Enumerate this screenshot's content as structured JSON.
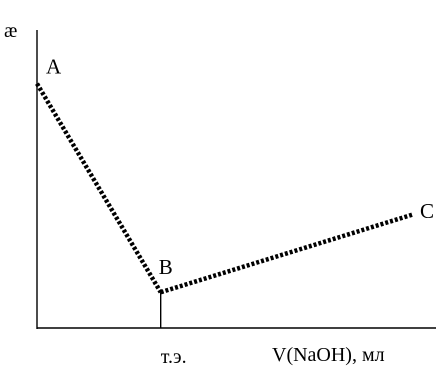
{
  "chart_data": {
    "type": "line",
    "title": "",
    "ylabel": "æ",
    "xlabel": "V(NaOH), мл",
    "xlim": [
      0,
      100
    ],
    "ylim": [
      0,
      100
    ],
    "grid": false,
    "x_marker": {
      "label": "т.э.",
      "x": 31
    },
    "series": [
      {
        "points": [
          {
            "label": "A",
            "x": 0,
            "y": 82
          },
          {
            "label": "B",
            "x": 31,
            "y": 12
          },
          {
            "label": "C",
            "x": 94,
            "y": 38
          }
        ]
      }
    ]
  }
}
